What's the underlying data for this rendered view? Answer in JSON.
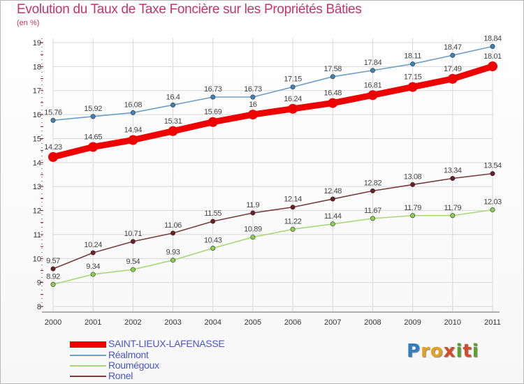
{
  "title": "Evolution du Taux de Taxe Foncière sur les Propriétés Bâties",
  "unit_label": "(en %)",
  "logo": {
    "text": "Proxiti",
    "letters": [
      "P",
      "r",
      "o",
      "x",
      "i",
      "t",
      "i"
    ],
    "colors": [
      "#2d7fc1",
      "#e5a021",
      "#e5a021",
      "#d44a2a",
      "#5aa02c",
      "#d44a2a",
      "#5aa02c"
    ]
  },
  "colors": {
    "title": "#c8336a",
    "axis": "#7a0c34",
    "grid": "#d8d8d8"
  },
  "chart_data": {
    "type": "line",
    "categories": [
      "2000",
      "2001",
      "2002",
      "2003",
      "2004",
      "2005",
      "2006",
      "2007",
      "2008",
      "2009",
      "2010",
      "2011"
    ],
    "y_ticks": [
      "8",
      "9",
      "10",
      "11",
      "12",
      "13",
      "14",
      "15",
      "16",
      "17",
      "18",
      "19"
    ],
    "ylim": [
      8,
      19
    ],
    "grid": true,
    "legend_position": "bottom-left",
    "series": [
      {
        "name": "SAINT-LIEUX-LAFENASSE",
        "color": "#ee0000",
        "marker_color": "#ee0000",
        "label_color": "#444444",
        "emphasis": true,
        "values": [
          14.23,
          14.65,
          14.94,
          15.31,
          15.69,
          16.0,
          16.24,
          16.48,
          16.81,
          17.15,
          17.49,
          18.01
        ],
        "labels": [
          "14.23",
          "14.65",
          "14.94",
          "15.31",
          "15.69",
          "16",
          "16.24",
          "16.48",
          "16.81",
          "17.15",
          "17.49",
          "18.01"
        ]
      },
      {
        "name": "Réalmont",
        "color": "#6e9fc6",
        "marker_color": "#3d82bb",
        "label_color": "#444444",
        "emphasis": false,
        "values": [
          15.76,
          15.92,
          16.08,
          16.4,
          16.73,
          16.73,
          17.15,
          17.58,
          17.84,
          18.11,
          18.47,
          18.84
        ],
        "labels": [
          "15.76",
          "15.92",
          "16.08",
          "16.4",
          "16.73",
          "16.73",
          "17.15",
          "17.58",
          "17.84",
          "18.11",
          "18.47",
          "18.84"
        ]
      },
      {
        "name": "Roumégoux",
        "color": "#a8d878",
        "marker_color": "#8ccf4e",
        "label_color": "#444444",
        "emphasis": false,
        "values": [
          8.92,
          9.34,
          9.54,
          9.93,
          10.43,
          10.89,
          11.22,
          11.44,
          11.67,
          11.79,
          11.79,
          12.03
        ],
        "labels": [
          "8.92",
          "9.34",
          "9.54",
          "9.93",
          "10.43",
          "10.89",
          "11.22",
          "11.44",
          "11.67",
          "11.79",
          "11.79",
          "12.03"
        ]
      },
      {
        "name": "Ronel",
        "color": "#7a3b3b",
        "marker_color": "#6b1f24",
        "label_color": "#444444",
        "emphasis": false,
        "values": [
          9.57,
          10.24,
          10.71,
          11.06,
          11.55,
          11.9,
          12.14,
          12.48,
          12.82,
          13.08,
          13.34,
          13.54
        ],
        "labels": [
          "9.57",
          "10.24",
          "10.71",
          "11.06",
          "11.55",
          "11.9",
          "12.14",
          "12.48",
          "12.82",
          "13.08",
          "13.34",
          "13.54"
        ]
      }
    ]
  }
}
